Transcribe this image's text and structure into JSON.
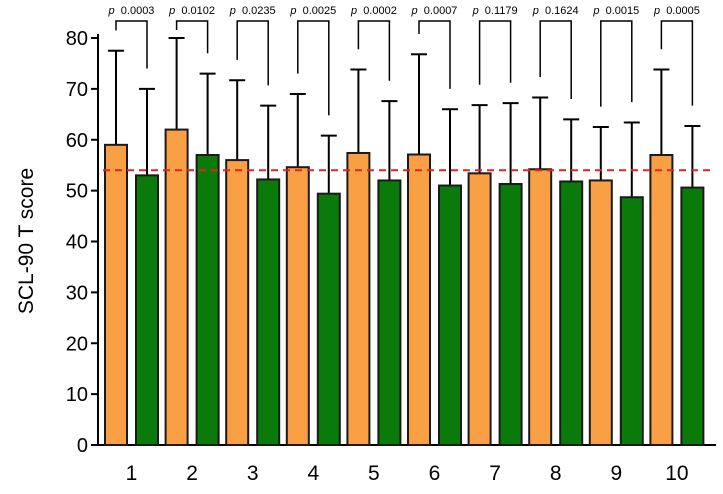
{
  "chart_data": {
    "type": "bar",
    "title": "",
    "xlabel": "",
    "ylabel": "SCL-90 T score",
    "ylim": [
      0,
      80
    ],
    "yticks": [
      "0",
      "10",
      "20",
      "30",
      "40",
      "50",
      "60",
      "70",
      "80"
    ],
    "categories": [
      "1",
      "2",
      "3",
      "4",
      "5",
      "6",
      "7",
      "8",
      "9",
      "10"
    ],
    "series": [
      {
        "name": "orange",
        "color": "#F9A044",
        "values": [
          59,
          62,
          56,
          54.6,
          57.4,
          57.1,
          53.4,
          54.2,
          52,
          57
        ],
        "error_upper": [
          77.5,
          80,
          71.7,
          69,
          73.8,
          76.8,
          66.8,
          68.3,
          62.5,
          73.8
        ]
      },
      {
        "name": "green",
        "color": "#0A7A0A",
        "values": [
          53,
          57,
          52.2,
          49.4,
          52,
          51,
          51.3,
          51.8,
          48.7,
          50.6
        ],
        "error_upper": [
          70,
          73,
          66.7,
          60.8,
          67.6,
          66,
          67.2,
          64,
          63.4,
          62.7
        ]
      }
    ],
    "p_prefix": "p",
    "p_values": [
      "0.0003",
      "0.0102",
      "0.0235",
      "0.0025",
      "0.0002",
      "0.0007",
      "0.1179",
      "0.1624",
      "0.0015",
      "0.0005"
    ],
    "reference_line": {
      "value": 54,
      "color": "#E8201E",
      "style": "dashed"
    }
  }
}
